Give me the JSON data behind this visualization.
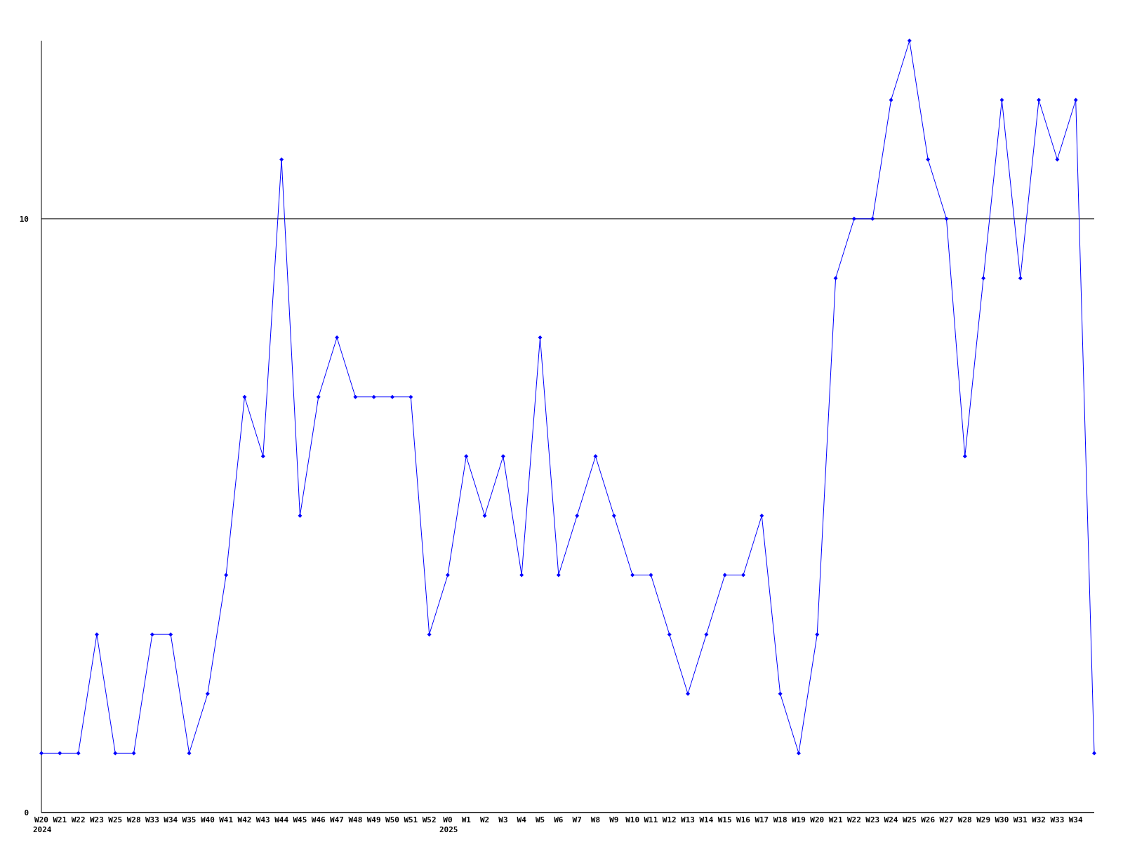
{
  "chart_data": {
    "type": "line",
    "categories": [
      "W20\n2024",
      "W21",
      "W22",
      "W23",
      "W25",
      "W28",
      "W33",
      "W34",
      "W35",
      "W40",
      "W41",
      "W42",
      "W43",
      "W44",
      "W45",
      "W46",
      "W47",
      "W48",
      "W49",
      "W50",
      "W51",
      "W52",
      "W0\n2025",
      "W1",
      "W2",
      "W3",
      "W4",
      "W5",
      "W6",
      "W7",
      "W8",
      "W9",
      "W10",
      "W11",
      "W12",
      "W13",
      "W14",
      "W15",
      "W16",
      "W17",
      "W18",
      "W19",
      "W20",
      "W21",
      "W22",
      "W23",
      "W24",
      "W25",
      "W26",
      "W27",
      "W28",
      "W29",
      "W30",
      "W31",
      "W32",
      "W33",
      "W34",
      null
    ],
    "series": [
      {
        "color": "#0000ff",
        "values": [
          1,
          1,
          1,
          3,
          1,
          1,
          3,
          3,
          1,
          2,
          4,
          7,
          6,
          11,
          5,
          7,
          8,
          7,
          7,
          7,
          7,
          3,
          4,
          6,
          5,
          6,
          4,
          8,
          4,
          5,
          6,
          5,
          4,
          4,
          3,
          2,
          3,
          4,
          4,
          5,
          2,
          1,
          3,
          9,
          10,
          10,
          12,
          13,
          11,
          10,
          6,
          9,
          12,
          9,
          12,
          11,
          12,
          1
        ]
      }
    ],
    "ylim": [
      0,
      13
    ],
    "yticks": [
      0,
      10
    ],
    "grid": "y",
    "marker": "diamond",
    "line_style": "solid"
  }
}
